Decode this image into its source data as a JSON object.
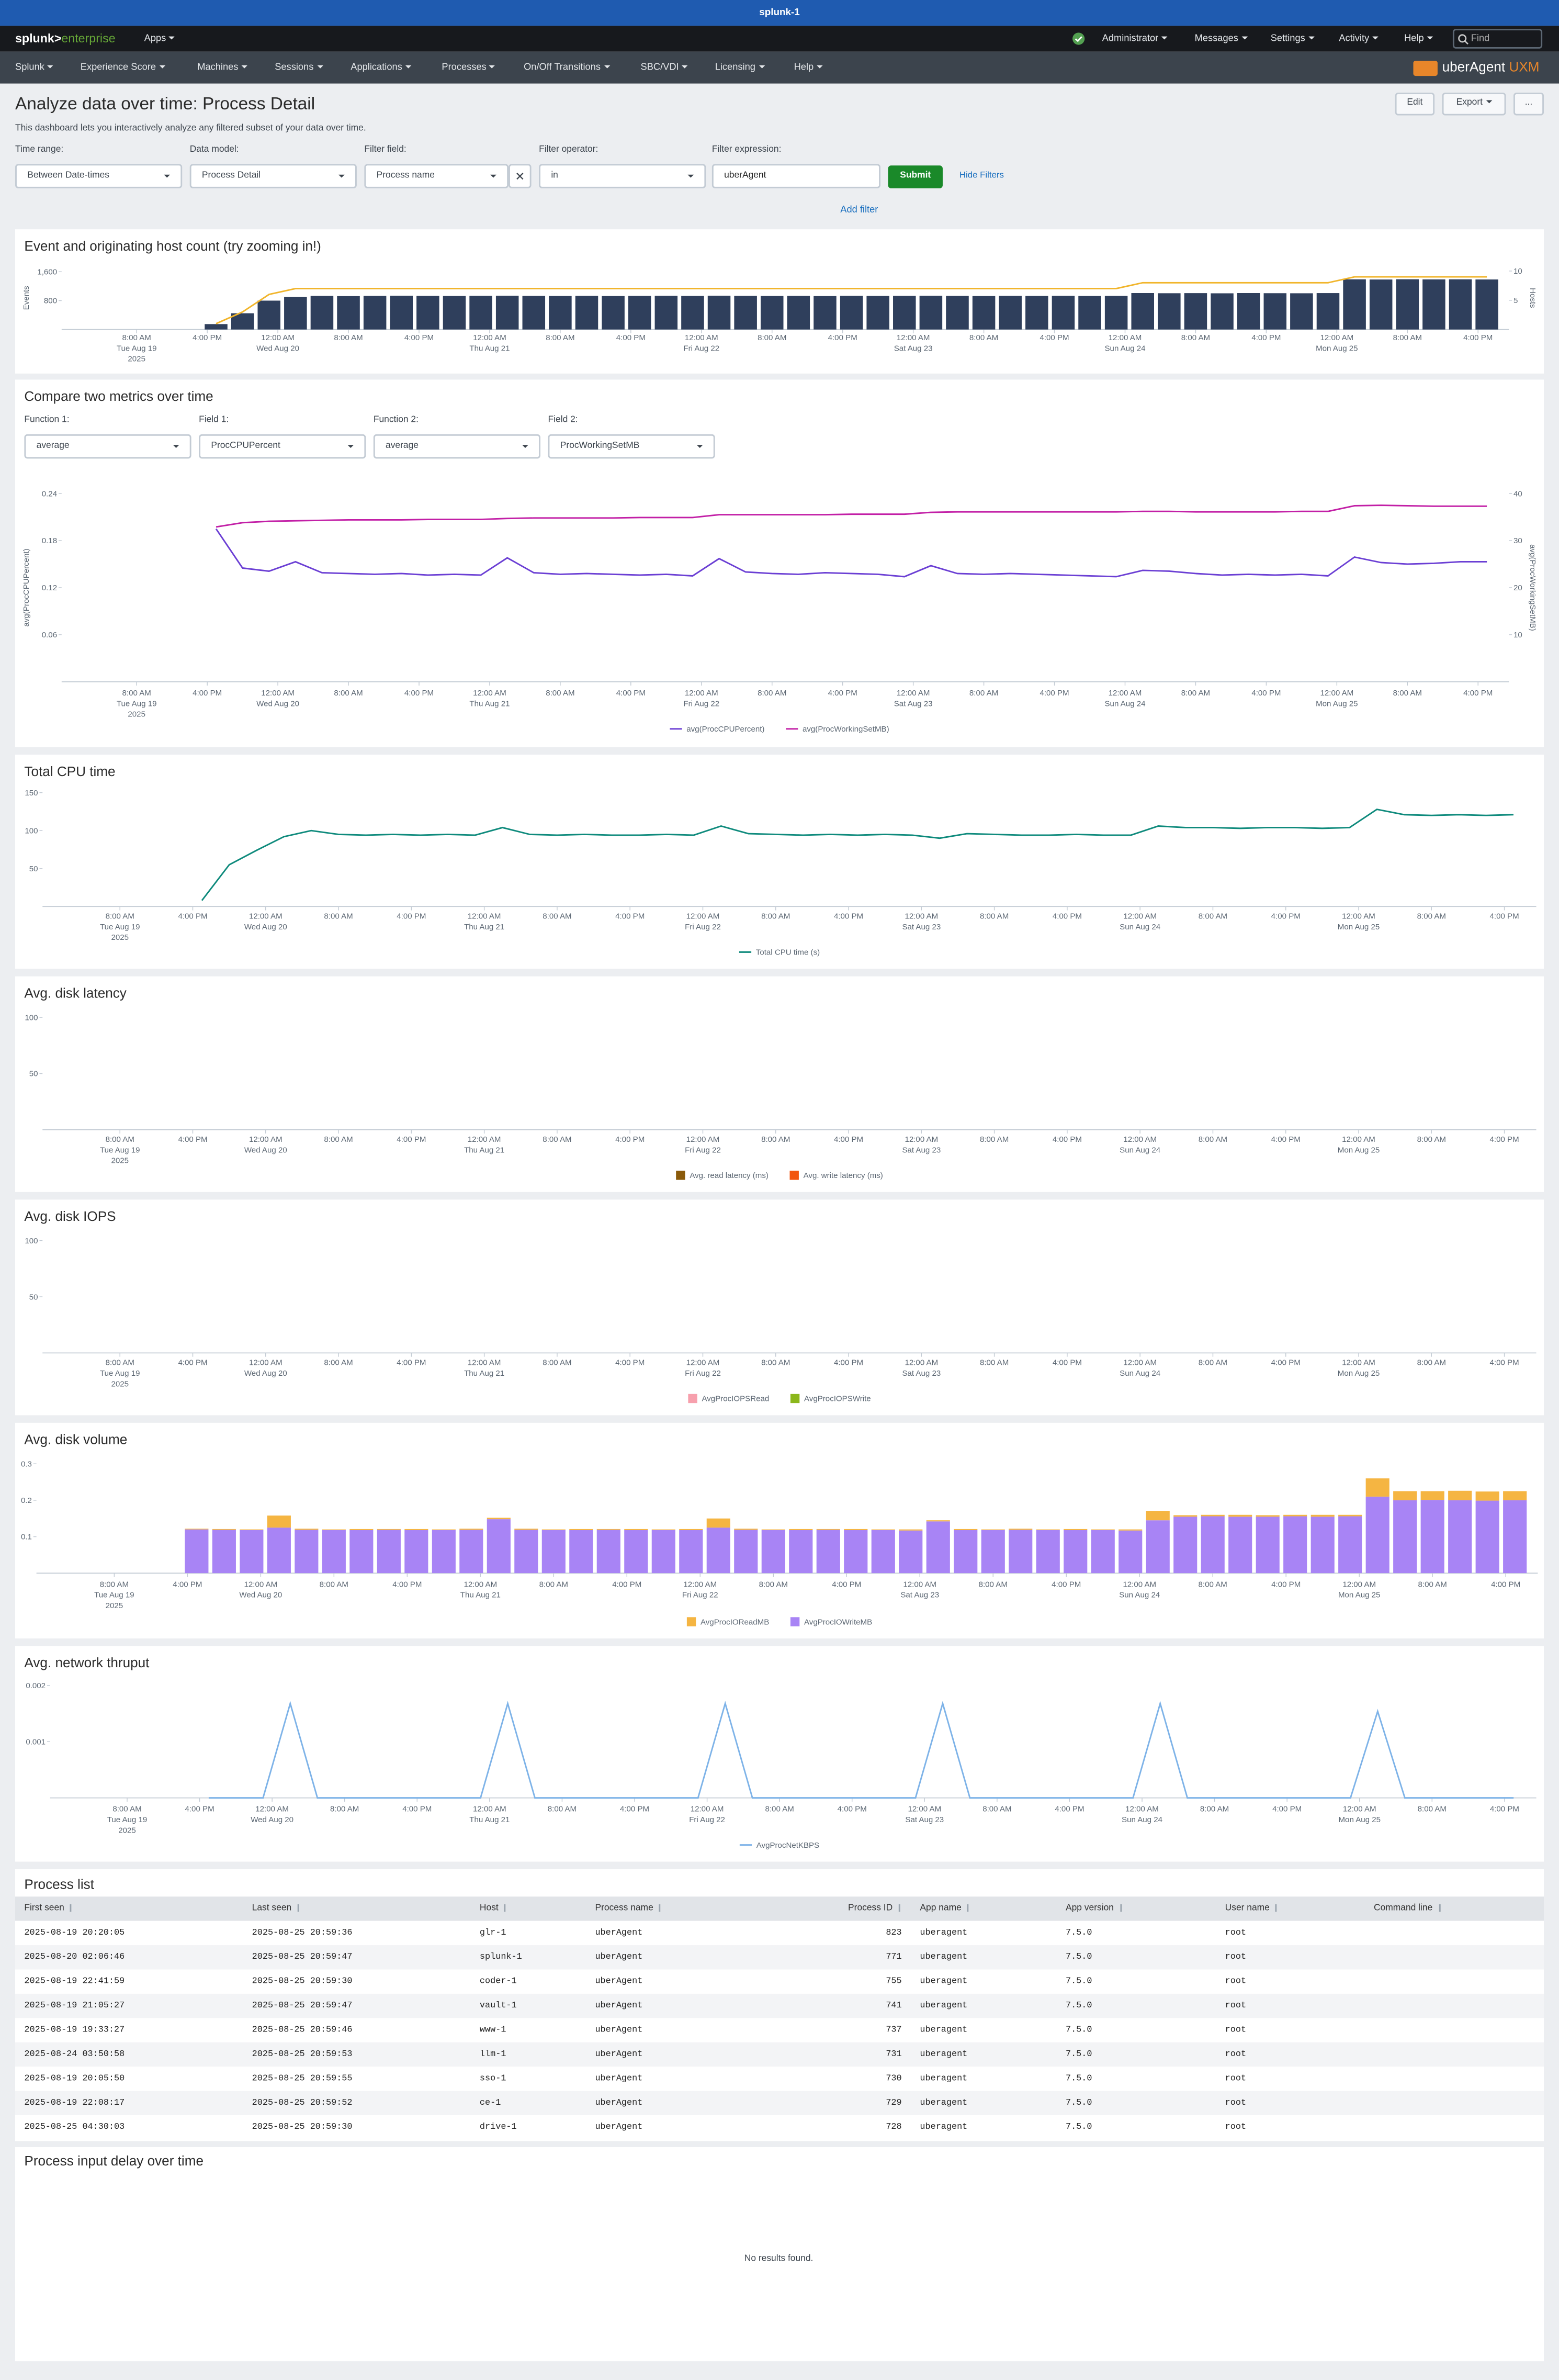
{
  "header": {
    "instance": "splunk-1",
    "brand": "splunk>",
    "brand_product": "enterprise",
    "apps": "Apps",
    "user_menu": [
      "Administrator",
      "Messages",
      "Settings",
      "Activity",
      "Help"
    ],
    "search_placeholder": "Find"
  },
  "app_nav": {
    "items": [
      "Splunk",
      "Experience Score",
      "Machines",
      "Sessions",
      "Applications",
      "Processes",
      "On/Off Transitions",
      "SBC/VDI",
      "Licensing",
      "Help"
    ],
    "logo": "uberAgent",
    "logo_accent": "UXM"
  },
  "dashboard": {
    "title": "Analyze data over time: Process Detail",
    "description": "This dashboard lets you interactively analyze any filtered subset of your data over time.",
    "buttons": [
      "Edit",
      "Export",
      "..."
    ],
    "inputs": [
      {
        "label": "Time range:",
        "value": "Between Date-times"
      },
      {
        "label": "Data model:",
        "value": "Process Detail"
      },
      {
        "label": "Filter field:",
        "value": "Process name"
      },
      {
        "label": "Filter operator:",
        "value": "in"
      },
      {
        "label": "Filter expression:",
        "value": "uberAgent"
      }
    ],
    "submit": "Submit",
    "hide_filters": "Hide Filters",
    "add_filter": "Add filter"
  },
  "time_axis": {
    "xlim": [
      "2025-08-18T23:30",
      "2025-08-25T19:30"
    ],
    "xticks": [
      {
        "value": "2025-08-19T08:00",
        "label": [
          "8:00 AM",
          "Tue Aug 19",
          "2025"
        ]
      },
      {
        "value": "2025-08-19T16:00",
        "label": [
          "4:00 PM"
        ]
      },
      {
        "value": "2025-08-20T00:00",
        "label": [
          "12:00 AM",
          "Wed Aug 20"
        ]
      },
      {
        "value": "2025-08-20T08:00",
        "label": [
          "8:00 AM"
        ]
      },
      {
        "value": "2025-08-20T16:00",
        "label": [
          "4:00 PM"
        ]
      },
      {
        "value": "2025-08-21T00:00",
        "label": [
          "12:00 AM",
          "Thu Aug 21"
        ]
      },
      {
        "value": "2025-08-21T08:00",
        "label": [
          "8:00 AM"
        ]
      },
      {
        "value": "2025-08-21T16:00",
        "label": [
          "4:00 PM"
        ]
      },
      {
        "value": "2025-08-22T00:00",
        "label": [
          "12:00 AM",
          "Fri Aug 22"
        ]
      },
      {
        "value": "2025-08-22T08:00",
        "label": [
          "8:00 AM"
        ]
      },
      {
        "value": "2025-08-22T16:00",
        "label": [
          "4:00 PM"
        ]
      },
      {
        "value": "2025-08-23T00:00",
        "label": [
          "12:00 AM",
          "Sat Aug 23"
        ]
      },
      {
        "value": "2025-08-23T08:00",
        "label": [
          "8:00 AM"
        ]
      },
      {
        "value": "2025-08-23T16:00",
        "label": [
          "4:00 PM"
        ]
      },
      {
        "value": "2025-08-24T00:00",
        "label": [
          "12:00 AM",
          "Sun Aug 24"
        ]
      },
      {
        "value": "2025-08-24T08:00",
        "label": [
          "8:00 AM"
        ]
      },
      {
        "value": "2025-08-24T16:00",
        "label": [
          "4:00 PM"
        ]
      },
      {
        "value": "2025-08-25T00:00",
        "label": [
          "12:00 AM",
          "Mon Aug 25"
        ]
      },
      {
        "value": "2025-08-25T08:00",
        "label": [
          "8:00 AM"
        ]
      },
      {
        "value": "2025-08-25T16:00",
        "label": [
          "4:00 PM"
        ]
      }
    ],
    "x": [
      "2025-08-19T17:00",
      "2025-08-19T20:00",
      "2025-08-19T23:00",
      "2025-08-20T02:00",
      "2025-08-20T05:00",
      "2025-08-20T08:00",
      "2025-08-20T11:00",
      "2025-08-20T14:00",
      "2025-08-20T17:00",
      "2025-08-20T20:00",
      "2025-08-20T23:00",
      "2025-08-21T02:00",
      "2025-08-21T05:00",
      "2025-08-21T08:00",
      "2025-08-21T11:00",
      "2025-08-21T14:00",
      "2025-08-21T17:00",
      "2025-08-21T20:00",
      "2025-08-21T23:00",
      "2025-08-22T02:00",
      "2025-08-22T05:00",
      "2025-08-22T08:00",
      "2025-08-22T11:00",
      "2025-08-22T14:00",
      "2025-08-22T17:00",
      "2025-08-22T20:00",
      "2025-08-22T23:00",
      "2025-08-23T02:00",
      "2025-08-23T05:00",
      "2025-08-23T08:00",
      "2025-08-23T11:00",
      "2025-08-23T14:00",
      "2025-08-23T17:00",
      "2025-08-23T20:00",
      "2025-08-23T23:00",
      "2025-08-24T02:00",
      "2025-08-24T05:00",
      "2025-08-24T08:00",
      "2025-08-24T11:00",
      "2025-08-24T14:00",
      "2025-08-24T17:00",
      "2025-08-24T20:00",
      "2025-08-24T23:00",
      "2025-08-25T02:00",
      "2025-08-25T05:00",
      "2025-08-25T08:00",
      "2025-08-25T11:00",
      "2025-08-25T14:00",
      "2025-08-25T17:00"
    ]
  },
  "chart_data": [
    {
      "type": "bar",
      "title": "Event and originating host count (try zooming in!)",
      "ylabel": "Events",
      "y2label": "Hosts",
      "ylim": [
        0,
        1750
      ],
      "yticks": [
        800,
        {
          "value": 1600,
          "label": "1,600"
        }
      ],
      "y2lim": [
        0,
        10.8
      ],
      "y2ticks": [
        5,
        10
      ],
      "grid": false,
      "series": [
        {
          "type": "bar",
          "color": "#2f3f5c",
          "values": [
            150,
            450,
            800,
            900,
            930,
            925,
            930,
            935,
            930,
            928,
            932,
            935,
            930,
            928,
            931,
            927,
            930,
            933,
            929,
            936,
            931,
            928,
            930,
            926,
            932,
            929,
            931,
            934,
            930,
            927,
            931,
            929,
            932,
            928,
            930,
            1010,
            1005,
            1008,
            1003,
            1010,
            1006,
            1004,
            1009,
            1390,
            1385,
            1392,
            1388,
            1390,
            1386
          ]
        },
        {
          "type": "line",
          "axis": "y2",
          "color": "#f1b52c",
          "values": [
            1,
            3,
            6,
            7,
            7,
            7,
            7,
            7,
            7,
            7,
            7,
            7,
            7,
            7,
            7,
            7,
            7,
            7,
            7,
            7,
            7,
            7,
            7,
            7,
            7,
            7,
            7,
            7,
            7,
            7,
            7,
            7,
            7,
            7,
            7,
            8,
            8,
            8,
            8,
            8,
            8,
            8,
            8,
            9,
            9,
            9,
            9,
            9,
            9
          ]
        }
      ]
    },
    {
      "type": "line",
      "title": "Compare two metrics over time",
      "inputs": [
        {
          "label": "Function 1:",
          "value": "average"
        },
        {
          "label": "Field 1:",
          "value": "ProcCPUPercent"
        },
        {
          "label": "Function 2:",
          "value": "average"
        },
        {
          "label": "Field 2:",
          "value": "ProcWorkingSetMB"
        }
      ],
      "ylabel": "avg(ProcCPUPercent)",
      "y2label": "avg(ProcWorkingSetMB)",
      "ylim": [
        0,
        0.24
      ],
      "yticks": [
        0.06,
        0.12,
        0.18,
        0.24
      ],
      "y2lim": [
        0,
        40
      ],
      "y2ticks": [
        10,
        20,
        30,
        40
      ],
      "grid": false,
      "series": [
        {
          "name": "avg(ProcCPUPercent)",
          "color": "#6b3fd4",
          "values": [
            0.195,
            0.145,
            0.141,
            0.153,
            0.139,
            0.138,
            0.137,
            0.138,
            0.136,
            0.137,
            0.136,
            0.158,
            0.139,
            0.137,
            0.138,
            0.137,
            0.136,
            0.137,
            0.135,
            0.157,
            0.14,
            0.138,
            0.137,
            0.139,
            0.138,
            0.137,
            0.134,
            0.148,
            0.138,
            0.137,
            0.138,
            0.137,
            0.136,
            0.135,
            0.134,
            0.142,
            0.141,
            0.138,
            0.136,
            0.137,
            0.136,
            0.137,
            0.135,
            0.159,
            0.152,
            0.15,
            0.151,
            0.153,
            0.153
          ]
        },
        {
          "name": "avg(ProcWorkingSetMB)",
          "axis": "y2",
          "color": "#c21fa6",
          "values": [
            32.9,
            33.8,
            34.1,
            34.2,
            34.3,
            34.4,
            34.4,
            34.4,
            34.5,
            34.5,
            34.5,
            34.7,
            34.8,
            34.8,
            34.8,
            34.8,
            34.9,
            34.9,
            34.9,
            35.5,
            35.5,
            35.5,
            35.5,
            35.5,
            35.6,
            35.6,
            35.6,
            36.0,
            36.1,
            36.1,
            36.1,
            36.1,
            36.1,
            36.1,
            36.1,
            36.2,
            36.2,
            36.1,
            36.1,
            36.1,
            36.1,
            36.2,
            36.2,
            37.4,
            37.5,
            37.4,
            37.3,
            37.3,
            37.3
          ]
        }
      ]
    },
    {
      "type": "line",
      "title": "Total CPU time",
      "ylim": [
        0,
        160
      ],
      "yticks": [
        50,
        100,
        150
      ],
      "grid": false,
      "series": [
        {
          "name": "Total CPU time (s)",
          "color": "#0e8a7c",
          "values": [
            8,
            55,
            74,
            92,
            100,
            95,
            94,
            95,
            94,
            95,
            94,
            104,
            95,
            94,
            95,
            94,
            94,
            95,
            94,
            106,
            96,
            95,
            94,
            95,
            94,
            95,
            94,
            90,
            96,
            95,
            94,
            94,
            95,
            94,
            94,
            106,
            104,
            104,
            103,
            104,
            104,
            103,
            104,
            128,
            121,
            120,
            121,
            120,
            121
          ]
        }
      ]
    },
    {
      "type": "bar",
      "title": "Avg. disk latency",
      "ylim": [
        0,
        100
      ],
      "yticks": [
        50,
        100
      ],
      "grid": false,
      "series": [
        {
          "name": "Avg. read latency (ms)",
          "color": "#8a5a0a"
        },
        {
          "name": "Avg. write latency (ms)",
          "color": "#f2560f"
        }
      ]
    },
    {
      "type": "bar",
      "title": "Avg. disk IOPS",
      "ylim": [
        0,
        100
      ],
      "yticks": [
        50,
        100
      ],
      "grid": false,
      "series": [
        {
          "name": "AvgProcIOPSRead",
          "color": "#f7a0ad"
        },
        {
          "name": "AvgProcIOPSWrite",
          "color": "#8bb71b"
        }
      ]
    },
    {
      "type": "bar",
      "stacked": true,
      "title": "Avg. disk volume",
      "ylim": [
        0,
        0.3
      ],
      "yticks": [
        0.1,
        0.2,
        0.3
      ],
      "grid": false,
      "series": [
        {
          "name": "AvgProcIOReadMB",
          "color": "#f5b542",
          "values": [
            0.002,
            0.002,
            0.002,
            0.033,
            0.003,
            0.002,
            0.003,
            0.002,
            0.003,
            0.002,
            0.003,
            0.004,
            0.003,
            0.002,
            0.003,
            0.002,
            0.003,
            0.002,
            0.003,
            0.025,
            0.003,
            0.002,
            0.003,
            0.002,
            0.003,
            0.002,
            0.003,
            0.003,
            0.003,
            0.002,
            0.003,
            0.002,
            0.003,
            0.002,
            0.003,
            0.026,
            0.004,
            0.004,
            0.005,
            0.004,
            0.004,
            0.005,
            0.004,
            0.05,
            0.025,
            0.024,
            0.026,
            0.025,
            0.025
          ]
        },
        {
          "name": "AvgProcIOWriteMB",
          "color": "#a884f5",
          "values": [
            0.12,
            0.119,
            0.118,
            0.125,
            0.119,
            0.118,
            0.118,
            0.119,
            0.118,
            0.118,
            0.119,
            0.148,
            0.119,
            0.118,
            0.118,
            0.119,
            0.118,
            0.118,
            0.118,
            0.125,
            0.119,
            0.118,
            0.118,
            0.119,
            0.118,
            0.118,
            0.117,
            0.142,
            0.118,
            0.118,
            0.119,
            0.118,
            0.118,
            0.118,
            0.117,
            0.145,
            0.155,
            0.156,
            0.155,
            0.155,
            0.156,
            0.155,
            0.156,
            0.21,
            0.2,
            0.201,
            0.2,
            0.199,
            0.2
          ]
        }
      ]
    },
    {
      "type": "line",
      "title": "Avg. network thruput",
      "ylim": [
        0,
        0.002
      ],
      "yticks": [
        0.001,
        0.002
      ],
      "grid": false,
      "series": [
        {
          "name": "AvgProcNetKBPS",
          "color": "#7eb3e8",
          "values": [
            0,
            0,
            0,
            0.00168,
            0,
            0,
            0,
            0,
            0,
            0,
            0,
            0.00168,
            0,
            0,
            0,
            0,
            0,
            0,
            0,
            0.00168,
            0,
            0,
            0,
            0,
            0,
            0,
            0,
            0.00168,
            0,
            0,
            0,
            0,
            0,
            0,
            0,
            0.00168,
            0,
            0,
            0,
            0,
            0,
            0,
            0,
            0.00154,
            0,
            0,
            0,
            0,
            0
          ]
        }
      ]
    }
  ],
  "process_list": {
    "title": "Process list",
    "columns": [
      "First seen",
      "Last seen",
      "Host",
      "Process name",
      "Process ID",
      "App name",
      "App version",
      "User name",
      "Command line"
    ],
    "rows": [
      [
        "2025-08-19 20:20:05",
        "2025-08-25 20:59:36",
        "glr-1",
        "uberAgent",
        "823",
        "uberagent",
        "7.5.0",
        "root"
      ],
      [
        "2025-08-20 02:06:46",
        "2025-08-25 20:59:47",
        "splunk-1",
        "uberAgent",
        "771",
        "uberagent",
        "7.5.0",
        "root"
      ],
      [
        "2025-08-19 22:41:59",
        "2025-08-25 20:59:30",
        "coder-1",
        "uberAgent",
        "755",
        "uberagent",
        "7.5.0",
        "root"
      ],
      [
        "2025-08-19 21:05:27",
        "2025-08-25 20:59:47",
        "vault-1",
        "uberAgent",
        "741",
        "uberagent",
        "7.5.0",
        "root"
      ],
      [
        "2025-08-19 19:33:27",
        "2025-08-25 20:59:46",
        "www-1",
        "uberAgent",
        "737",
        "uberagent",
        "7.5.0",
        "root"
      ],
      [
        "2025-08-24 03:50:58",
        "2025-08-25 20:59:53",
        "llm-1",
        "uberAgent",
        "731",
        "uberagent",
        "7.5.0",
        "root"
      ],
      [
        "2025-08-19 20:05:50",
        "2025-08-25 20:59:55",
        "sso-1",
        "uberAgent",
        "730",
        "uberagent",
        "7.5.0",
        "root"
      ],
      [
        "2025-08-19 22:08:17",
        "2025-08-25 20:59:52",
        "ce-1",
        "uberAgent",
        "729",
        "uberagent",
        "7.5.0",
        "root"
      ],
      [
        "2025-08-25 04:30:03",
        "2025-08-25 20:59:30",
        "drive-1",
        "uberAgent",
        "728",
        "uberagent",
        "7.5.0",
        "root"
      ]
    ]
  },
  "empty_panel": {
    "title": "Process input delay over time",
    "message": "No results found."
  }
}
